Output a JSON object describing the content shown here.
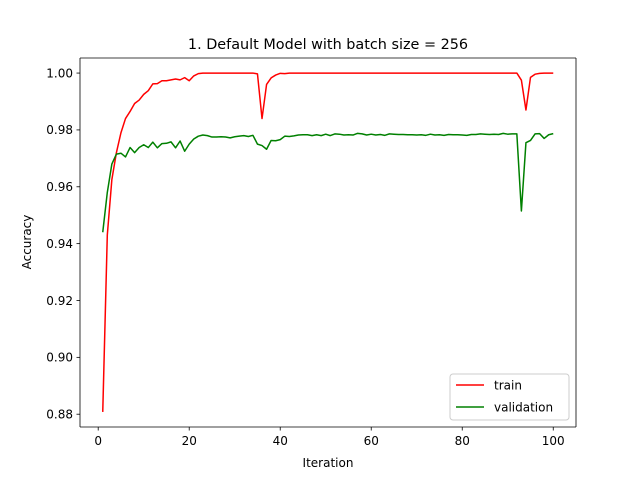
{
  "chart_data": {
    "type": "line",
    "title": "1. Default Model with batch size = 256",
    "xlabel": "Iteration",
    "ylabel": "Accuracy",
    "xlim": [
      -4,
      105
    ],
    "ylim": [
      0.8755,
      1.0053
    ],
    "xticks": [
      "0",
      "20",
      "40",
      "60",
      "80",
      "100"
    ],
    "yticks": [
      "0.88",
      "0.90",
      "0.92",
      "0.94",
      "0.96",
      "0.98",
      "1.00"
    ],
    "legend_position": "lower-right",
    "grid": false,
    "x": [
      1,
      2,
      3,
      4,
      5,
      6,
      7,
      8,
      9,
      10,
      11,
      12,
      13,
      14,
      15,
      16,
      17,
      18,
      19,
      20,
      21,
      22,
      23,
      24,
      25,
      26,
      27,
      28,
      29,
      30,
      31,
      32,
      33,
      34,
      35,
      36,
      37,
      38,
      39,
      40,
      41,
      42,
      43,
      44,
      45,
      46,
      47,
      48,
      49,
      50,
      51,
      52,
      53,
      54,
      55,
      56,
      57,
      58,
      59,
      60,
      61,
      62,
      63,
      64,
      65,
      66,
      67,
      68,
      69,
      70,
      71,
      72,
      73,
      74,
      75,
      76,
      77,
      78,
      79,
      80,
      81,
      82,
      83,
      84,
      85,
      86,
      87,
      88,
      89,
      90,
      91,
      92,
      93,
      94,
      95,
      96,
      97,
      98,
      99,
      100
    ],
    "series": [
      {
        "name": "train",
        "color": "#ff0000",
        "values": [
          0.8808,
          0.943,
          0.9625,
          0.972,
          0.979,
          0.984,
          0.9865,
          0.9893,
          0.9905,
          0.9925,
          0.9938,
          0.9962,
          0.9963,
          0.9973,
          0.9973,
          0.9976,
          0.9979,
          0.9976,
          0.9984,
          0.9973,
          0.999,
          0.9998,
          1.0,
          1.0,
          1.0,
          1.0,
          1.0,
          1.0,
          1.0,
          1.0,
          1.0,
          1.0,
          1.0,
          1.0,
          0.9997,
          0.984,
          0.996,
          0.9983,
          0.9993,
          0.9999,
          0.9998,
          1.0,
          1.0,
          1.0,
          1.0,
          1.0,
          1.0,
          1.0,
          1.0,
          1.0,
          1.0,
          1.0,
          1.0,
          1.0,
          1.0,
          1.0,
          1.0,
          1.0,
          1.0,
          1.0,
          1.0,
          1.0,
          1.0,
          1.0,
          1.0,
          1.0,
          1.0,
          1.0,
          1.0,
          1.0,
          1.0,
          1.0,
          1.0,
          1.0,
          1.0,
          1.0,
          1.0,
          1.0,
          1.0,
          1.0,
          1.0,
          1.0,
          1.0,
          1.0,
          1.0,
          1.0,
          1.0,
          1.0,
          1.0,
          1.0,
          1.0,
          1.0,
          0.9975,
          0.987,
          0.9985,
          0.9996,
          0.9999,
          1.0,
          1.0,
          1.0
        ]
      },
      {
        "name": "validation",
        "color": "#008000",
        "values": [
          0.944,
          0.958,
          0.968,
          0.9715,
          0.9718,
          0.9705,
          0.9738,
          0.972,
          0.9738,
          0.9748,
          0.9738,
          0.9757,
          0.9737,
          0.9752,
          0.9753,
          0.9758,
          0.9737,
          0.9761,
          0.9725,
          0.975,
          0.9768,
          0.9778,
          0.9782,
          0.978,
          0.9775,
          0.9775,
          0.9776,
          0.9775,
          0.9772,
          0.9776,
          0.9778,
          0.978,
          0.9777,
          0.9781,
          0.975,
          0.9745,
          0.9732,
          0.9763,
          0.9762,
          0.9766,
          0.9778,
          0.9777,
          0.9779,
          0.9782,
          0.9783,
          0.9783,
          0.978,
          0.9783,
          0.978,
          0.9785,
          0.978,
          0.9786,
          0.9785,
          0.9782,
          0.9783,
          0.9782,
          0.9788,
          0.9786,
          0.9782,
          0.9785,
          0.9782,
          0.9784,
          0.9781,
          0.9786,
          0.9785,
          0.9784,
          0.9784,
          0.9783,
          0.9783,
          0.9782,
          0.9783,
          0.9781,
          0.9785,
          0.9782,
          0.9783,
          0.9781,
          0.9784,
          0.9783,
          0.9783,
          0.9782,
          0.9781,
          0.9784,
          0.9784,
          0.9786,
          0.9785,
          0.9784,
          0.9785,
          0.9784,
          0.9788,
          0.9785,
          0.9786,
          0.9786,
          0.9515,
          0.9755,
          0.9763,
          0.9786,
          0.9787,
          0.977,
          0.9783,
          0.9787
        ]
      }
    ]
  }
}
